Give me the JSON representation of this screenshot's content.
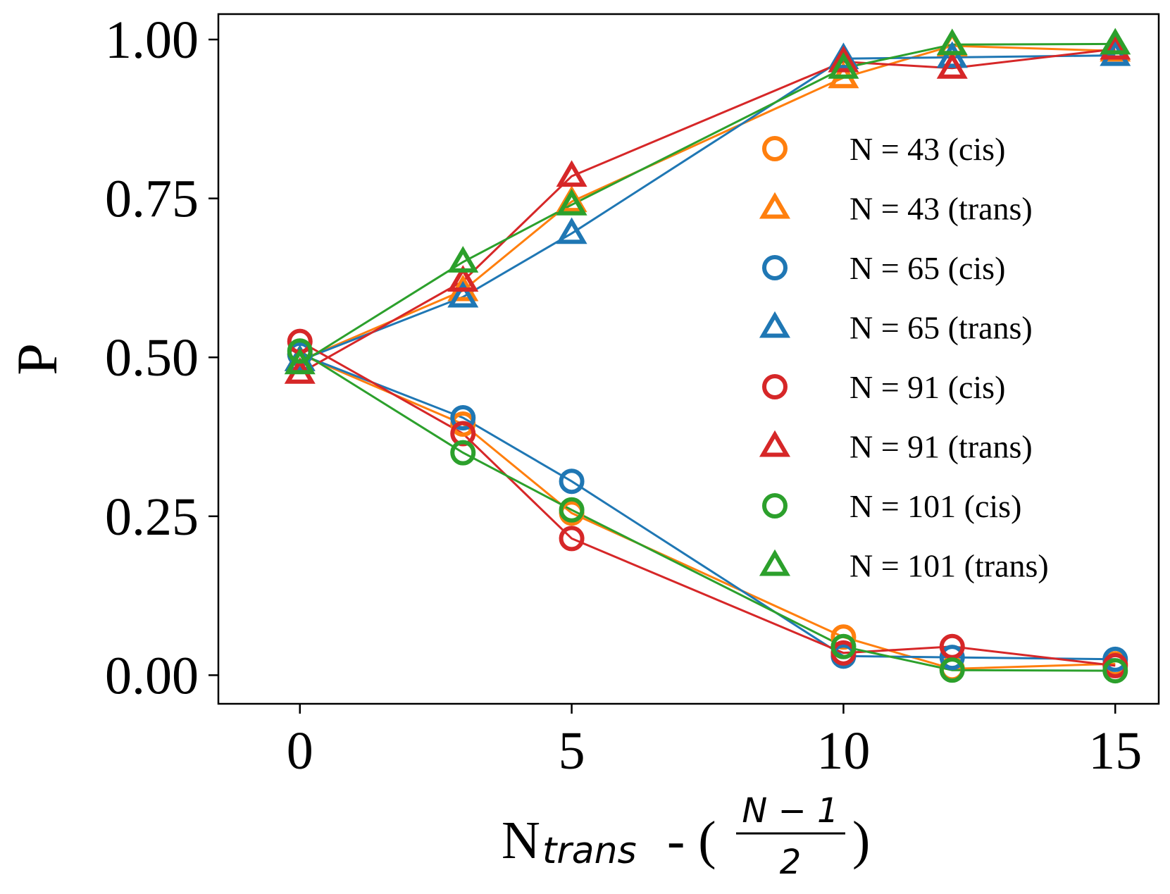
{
  "chart_data": {
    "type": "line",
    "title": "",
    "xlabel": {
      "base": "N",
      "subscript": "trans",
      "separator": " - (",
      "frac_numerator": "N − 1",
      "frac_denominator": "2",
      "close": ")"
    },
    "ylabel": "P",
    "xlim": [
      -1.5,
      15.8
    ],
    "ylim": [
      -0.045,
      1.04
    ],
    "xticks": [
      0,
      5,
      10,
      15
    ],
    "xtick_labels": [
      "0",
      "5",
      "10",
      "15"
    ],
    "yticks": [
      0.0,
      0.25,
      0.5,
      0.75,
      1.0
    ],
    "ytick_labels": [
      "0.00",
      "0.25",
      "0.50",
      "0.75",
      "1.00"
    ],
    "grid": false,
    "legend_position": "center-right",
    "x": [
      0,
      3,
      5,
      10,
      12,
      15
    ],
    "series": [
      {
        "name": "N = 43 (cis)",
        "marker": "circle",
        "color": "#ff7f0e",
        "values": [
          0.505,
          0.395,
          0.255,
          0.06,
          0.01,
          0.018
        ]
      },
      {
        "name": "N = 43 (trans)",
        "marker": "triangle",
        "color": "#ff7f0e",
        "values": [
          0.495,
          0.605,
          0.745,
          0.94,
          0.99,
          0.982
        ]
      },
      {
        "name": "N = 65 (cis)",
        "marker": "circle",
        "color": "#1f77b4",
        "values": [
          0.505,
          0.405,
          0.305,
          0.03,
          0.028,
          0.025
        ]
      },
      {
        "name": "N = 65 (trans)",
        "marker": "triangle",
        "color": "#1f77b4",
        "values": [
          0.495,
          0.595,
          0.695,
          0.97,
          0.972,
          0.975
        ]
      },
      {
        "name": "N = 91 (cis)",
        "marker": "circle",
        "color": "#d62728",
        "values": [
          0.525,
          0.38,
          0.215,
          0.035,
          0.045,
          0.015
        ]
      },
      {
        "name": "N = 91 (trans)",
        "marker": "triangle",
        "color": "#d62728",
        "values": [
          0.475,
          0.62,
          0.785,
          0.965,
          0.955,
          0.985
        ]
      },
      {
        "name": "N = 101 (cis)",
        "marker": "circle",
        "color": "#2ca02c",
        "values": [
          0.51,
          0.35,
          0.26,
          0.045,
          0.008,
          0.007
        ]
      },
      {
        "name": "N = 101 (trans)",
        "marker": "triangle",
        "color": "#2ca02c",
        "values": [
          0.49,
          0.65,
          0.74,
          0.955,
          0.992,
          0.993
        ]
      }
    ]
  }
}
